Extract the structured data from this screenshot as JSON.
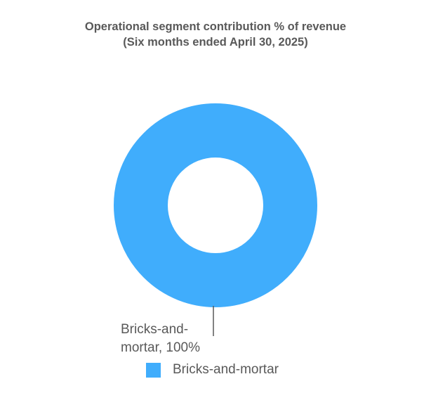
{
  "chart_data": {
    "type": "pie",
    "variant": "donut",
    "title_lines": [
      "Operational segment contribution % of revenue",
      "(Six months ended April 30, 2025)"
    ],
    "slices": [
      {
        "label": "Bricks-and-mortar",
        "value": 100,
        "color": "#40adfc"
      }
    ],
    "data_labels": [
      {
        "lines": [
          "Bricks-and-",
          "mortar, 100%"
        ]
      }
    ],
    "legend": {
      "position": "bottom",
      "entries": [
        "Bricks-and-mortar"
      ]
    }
  }
}
